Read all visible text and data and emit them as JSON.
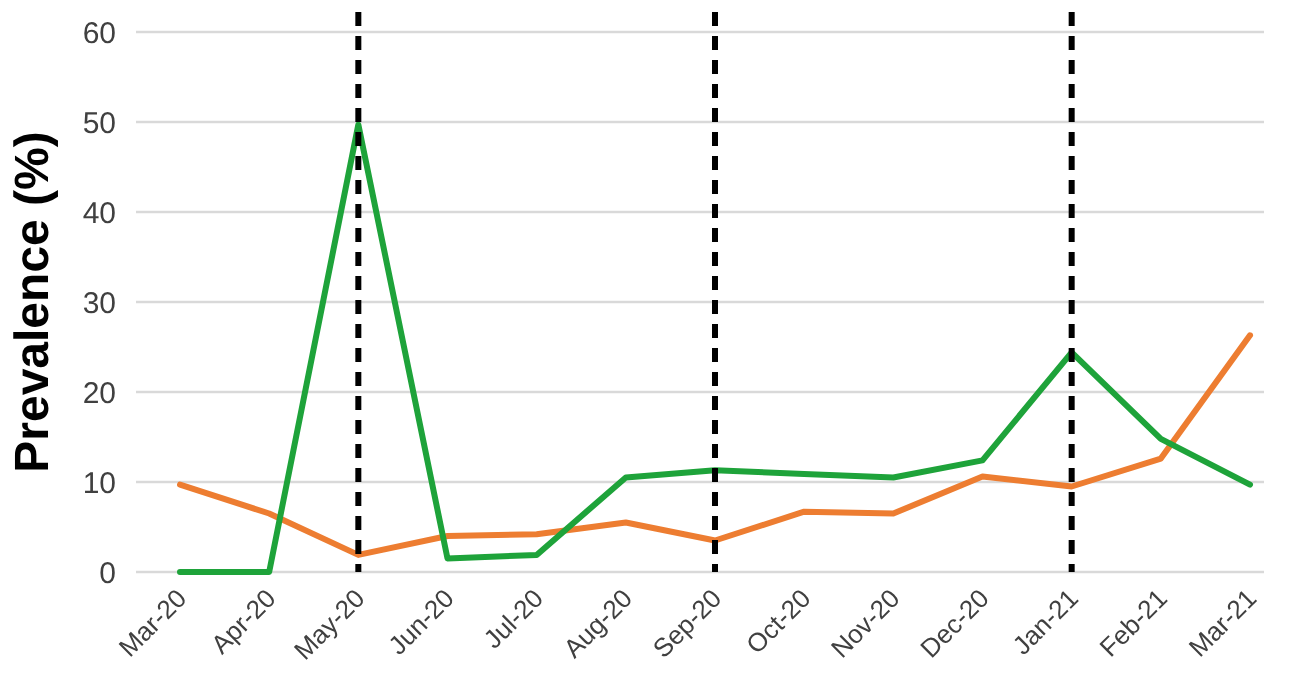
{
  "chart_data": {
    "type": "line",
    "ylabel": "Prevalence (%)",
    "categories": [
      "Mar-20",
      "Apr-20",
      "May-20",
      "Jun-20",
      "Jul-20",
      "Aug-20",
      "Sep-20",
      "Oct-20",
      "Nov-20",
      "Dec-20",
      "Jan-21",
      "Feb-21",
      "Mar-21"
    ],
    "series": [
      {
        "color": "#ed7d31",
        "values": [
          9.7,
          6.5,
          1.9,
          4.0,
          4.2,
          5.5,
          3.5,
          6.7,
          6.5,
          10.6,
          9.5,
          12.6,
          26.3
        ]
      },
      {
        "color": "#1ea33a",
        "values": [
          0,
          0,
          49.7,
          1.5,
          1.9,
          10.5,
          11.3,
          10.9,
          10.5,
          12.4,
          24.4,
          14.8,
          9.7
        ]
      }
    ],
    "ylim": [
      0,
      60
    ],
    "yticks": [
      0,
      10,
      20,
      30,
      40,
      50,
      60
    ],
    "grid": "y",
    "marker": "none",
    "line_style": "solid",
    "ref_lines": [
      {
        "axis": "x",
        "value": "May-20",
        "color": "#000000",
        "line_style": "dashed"
      },
      {
        "axis": "x",
        "value": "Sep-20",
        "color": "#000000",
        "line_style": "dashed"
      },
      {
        "axis": "x",
        "value": "Jan-21",
        "color": "#000000",
        "line_style": "dashed"
      }
    ]
  }
}
